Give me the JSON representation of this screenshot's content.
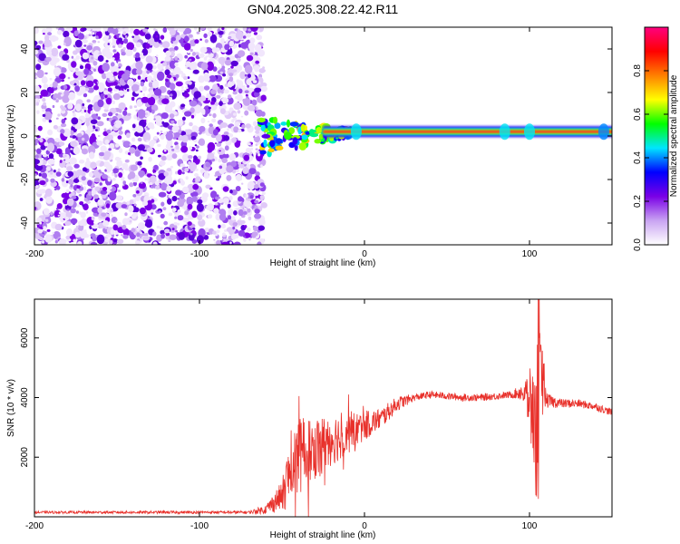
{
  "title": "GN04.2025.308.22.42.R11",
  "chart_data": [
    {
      "type": "heatmap",
      "name": "spectrogram",
      "xlabel": "Height of straight line (km)",
      "ylabel": "Frequency (Hz)",
      "xlim": [
        -200,
        150
      ],
      "ylim": [
        -50,
        50
      ],
      "xticks": [
        -200,
        -100,
        0,
        100
      ],
      "yticks": [
        -40,
        -20,
        0,
        20,
        40
      ],
      "grid": false,
      "colorbar": {
        "label": "Normalized spectral amplitude",
        "range": [
          0,
          1
        ],
        "ticks": [
          "0.0",
          "0.2",
          "0.4",
          "0.6",
          "0.8"
        ],
        "colormap": [
          "#ffffff",
          "#c9a4f2",
          "#7a00e6",
          "#0000ff",
          "#00e5ff",
          "#00ff00",
          "#ffff00",
          "#ff8000",
          "#ff0000",
          "#ff0080"
        ]
      },
      "features": [
        {
          "region": "noise",
          "x_range": [
            -200,
            -63
          ],
          "freq_range": [
            -50,
            50
          ],
          "amplitude": 0.1
        },
        {
          "region": "tone",
          "x_range": [
            -63,
            150
          ],
          "freq": 2,
          "amplitude_peak": 0.95
        }
      ]
    },
    {
      "type": "line",
      "name": "snr",
      "xlabel": "Height of straight line (km)",
      "ylabel": "SNR (10 * v/v)",
      "xlim": [
        -200,
        150
      ],
      "ylim": [
        0,
        7300
      ],
      "xticks": [
        -200,
        -100,
        0,
        100
      ],
      "yticks": [
        2000,
        4000,
        6000
      ],
      "grid": false,
      "color": "#e8302a",
      "envelope": {
        "x": [
          -200,
          -150,
          -100,
          -70,
          -60,
          -50,
          -45,
          -40,
          -30,
          -20,
          -10,
          0,
          10,
          20,
          30,
          40,
          50,
          60,
          70,
          80,
          90,
          95,
          100,
          103,
          105,
          108,
          110,
          120,
          130,
          140,
          150
        ],
        "y": [
          150,
          150,
          150,
          150,
          250,
          700,
          1500,
          2000,
          2300,
          2600,
          2800,
          3050,
          3300,
          3800,
          4000,
          4100,
          4050,
          4000,
          4000,
          4050,
          4100,
          4200,
          3900,
          3000,
          4000,
          4500,
          3900,
          3800,
          3800,
          3700,
          3500
        ]
      },
      "noise": {
        "x": [
          -200,
          -70,
          -60,
          -50,
          -45,
          -40,
          -30,
          -20,
          -10,
          0,
          10,
          20,
          30,
          90,
          95,
          100,
          103,
          105,
          108,
          110,
          120,
          150
        ],
        "y": [
          40,
          50,
          150,
          500,
          1200,
          1300,
          1100,
          900,
          700,
          500,
          350,
          250,
          120,
          120,
          300,
          1100,
          1800,
          2800,
          1200,
          250,
          150,
          120
        ]
      }
    }
  ]
}
